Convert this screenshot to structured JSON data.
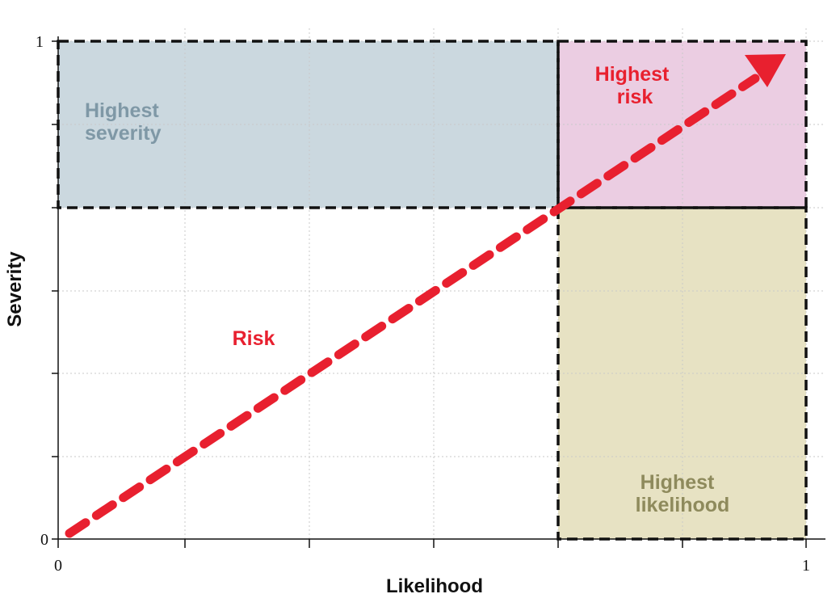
{
  "axes": {
    "x_title": "Likelihood",
    "y_title": "Severity",
    "x_ticks": [
      "0",
      "1"
    ],
    "y_ticks": [
      "0",
      "1"
    ]
  },
  "regions": {
    "highest_severity": {
      "line1": "Highest",
      "line2": "severity",
      "fill": "#cbd8df",
      "text_color": "#7f98a6"
    },
    "highest_risk": {
      "line1": "Highest",
      "line2": "risk",
      "fill": "#ebcde2",
      "text_color": "#e8202f"
    },
    "highest_likelihood": {
      "line1": "Highest",
      "line2": "likelihood",
      "fill": "#e7e2c3",
      "text_color": "#8e8a5c"
    }
  },
  "risk_label": "Risk",
  "colors": {
    "arrow": "#e8202f",
    "border": "#111111",
    "grid": "#c9c9c9"
  }
}
